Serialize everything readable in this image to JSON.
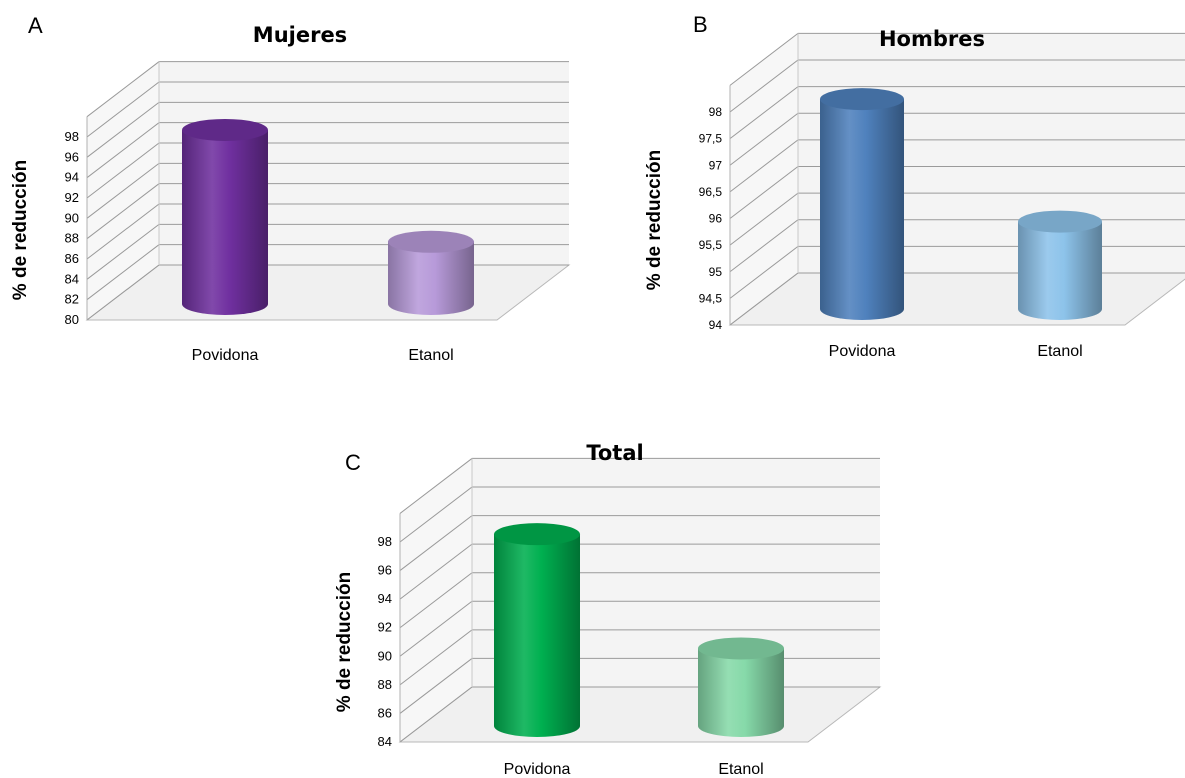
{
  "chart_data": [
    {
      "type": "bar",
      "panel_letter": "A",
      "title": "Mujeres",
      "xlabel": "",
      "ylabel": "% de reducción",
      "categories": [
        "Povidona",
        "Etanol"
      ],
      "values": [
        96.8,
        85.8
      ],
      "ylim": [
        80,
        98
      ],
      "yticks": [
        "80",
        "82",
        "84",
        "86",
        "88",
        "90",
        "92",
        "94",
        "96",
        "98"
      ],
      "colors": [
        "#7030A0",
        "#B79AD9"
      ],
      "grid": true,
      "style": "3d-cylinder"
    },
    {
      "type": "bar",
      "panel_letter": "B",
      "title": "Hombres",
      "xlabel": "",
      "ylabel": "% de reducción",
      "categories": [
        "Povidona",
        "Etanol"
      ],
      "values": [
        97.9,
        95.6
      ],
      "ylim": [
        94,
        98
      ],
      "yticks": [
        "94",
        "94,5",
        "95",
        "95,5",
        "96",
        "96,5",
        "97",
        "97,5",
        "98"
      ],
      "colors": [
        "#4F81BD",
        "#8DC3EA"
      ],
      "grid": true,
      "style": "3d-cylinder"
    },
    {
      "type": "bar",
      "panel_letter": "C",
      "title": "Total",
      "xlabel": "",
      "ylabel": "% de reducción",
      "categories": [
        "Povidona",
        "Etanol"
      ],
      "values": [
        97.2,
        89.2
      ],
      "ylim": [
        84,
        98
      ],
      "yticks": [
        "84",
        "86",
        "88",
        "90",
        "92",
        "94",
        "96",
        "98"
      ],
      "colors": [
        "#00B050",
        "#86D9A9"
      ],
      "grid": true,
      "style": "3d-cylinder"
    }
  ]
}
